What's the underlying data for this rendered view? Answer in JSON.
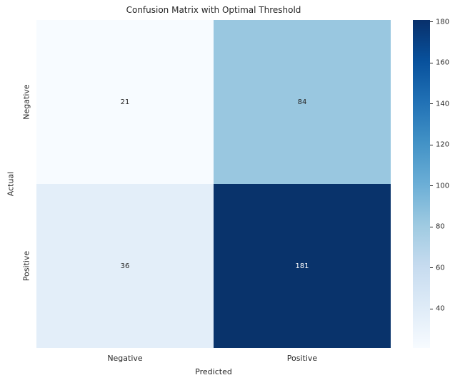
{
  "chart_data": {
    "type": "heatmap",
    "title": "Confusion Matrix with Optimal Threshold",
    "xlabel": "Predicted",
    "ylabel": "Actual",
    "x_categories": [
      "Negative",
      "Positive"
    ],
    "y_categories": [
      "Negative",
      "Positive"
    ],
    "values": [
      [
        21,
        84
      ],
      [
        36,
        181
      ]
    ],
    "colormap": "Blues",
    "vmin": 21,
    "vmax": 181,
    "colorbar_ticks": [
      40,
      60,
      80,
      100,
      120,
      140,
      160,
      180
    ],
    "cell_colors": [
      [
        "#f7fbff",
        "#99c7e0"
      ],
      [
        "#e3eef9",
        "#09336b"
      ]
    ],
    "cell_text_colors": [
      [
        "#262626",
        "#262626"
      ],
      [
        "#262626",
        "#ffffff"
      ]
    ],
    "legend_position": "right-colorbar",
    "grid": false
  }
}
